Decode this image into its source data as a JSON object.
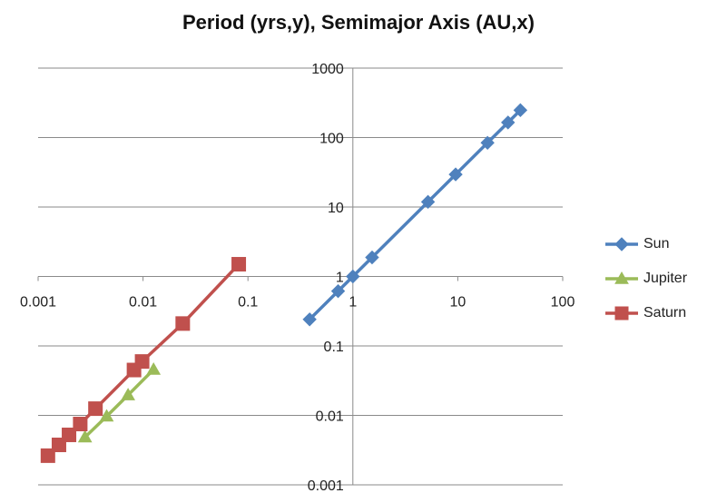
{
  "chart_data": {
    "type": "scatter",
    "title": "Period (yrs,y), Semimajor Axis (AU,x)",
    "x_scale": "log",
    "y_scale": "log",
    "xlim": [
      0.001,
      100
    ],
    "ylim": [
      0.001,
      1000
    ],
    "x_ticks": [
      "0.001",
      "0.01",
      "0.1",
      "1",
      "10",
      "100"
    ],
    "y_ticks": [
      "1000",
      "100",
      "10",
      "1",
      "0.1",
      "0.01",
      "0.001"
    ],
    "grid": "horizontal",
    "legend_position": "right",
    "series": [
      {
        "name": "Sun",
        "color": "#4F81BD",
        "marker": "diamond",
        "x": [
          0.387,
          0.723,
          1.0,
          1.524,
          5.2,
          9.54,
          19.2,
          30.1,
          39.5
        ],
        "y": [
          0.241,
          0.615,
          1.0,
          1.88,
          11.86,
          29.46,
          84.0,
          164.8,
          248.0
        ]
      },
      {
        "name": "Jupiter",
        "color": "#9BBB59",
        "marker": "triangle",
        "x": [
          0.0028,
          0.0045,
          0.0072,
          0.0126
        ],
        "y": [
          0.00485,
          0.0097,
          0.0196,
          0.0457
        ]
      },
      {
        "name": "Saturn",
        "color": "#C0504D",
        "marker": "square",
        "x": [
          0.00124,
          0.00158,
          0.00197,
          0.00252,
          0.00352,
          0.0082,
          0.0098,
          0.0239,
          0.0817
        ],
        "y": [
          0.00263,
          0.00376,
          0.00524,
          0.00751,
          0.0125,
          0.045,
          0.0597,
          0.21,
          1.5
        ]
      }
    ]
  }
}
